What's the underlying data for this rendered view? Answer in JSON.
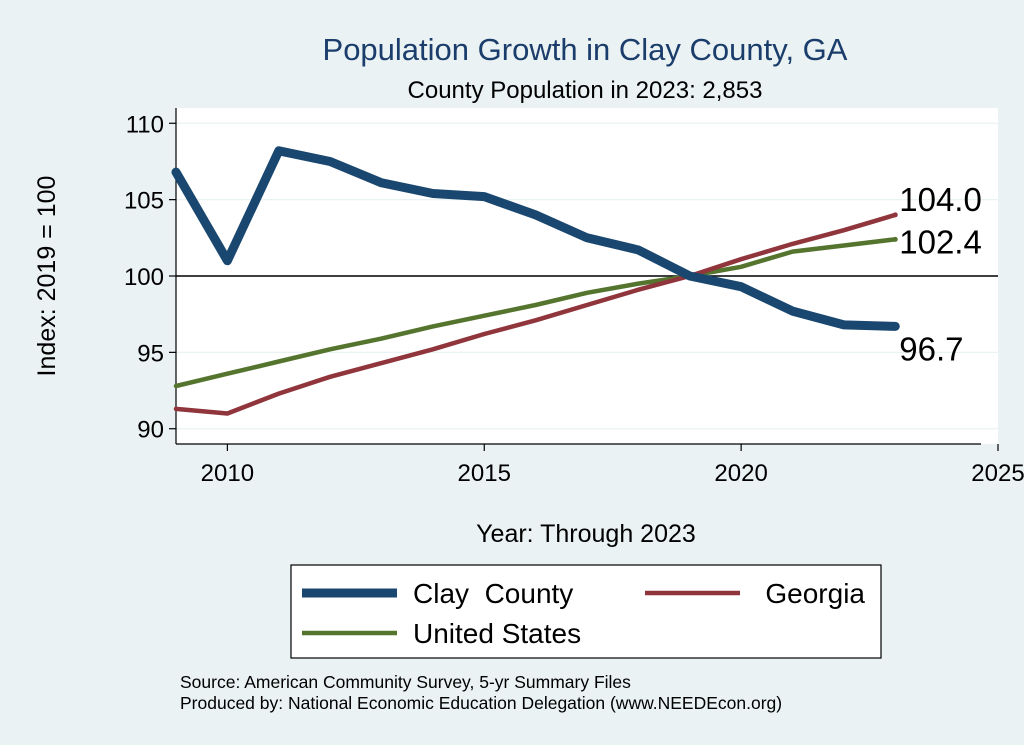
{
  "chart_data": {
    "type": "line",
    "title": "Population Growth in Clay County, GA",
    "subtitle": "County Population in 2023: 2,853",
    "xlabel": "Year: Through 2023",
    "ylabel": "Index: 2019 = 100",
    "xlim": [
      2009,
      2025
    ],
    "ylim": [
      89,
      111
    ],
    "xticks": [
      2010,
      2015,
      2020,
      2025
    ],
    "yticks": [
      90,
      95,
      100,
      105,
      110
    ],
    "reference_line": 100,
    "x": [
      2009,
      2010,
      2011,
      2012,
      2013,
      2014,
      2015,
      2016,
      2017,
      2018,
      2019,
      2020,
      2021,
      2022,
      2023
    ],
    "series": [
      {
        "name": "Clay  County",
        "color": "#1a476f",
        "values": [
          106.8,
          101.0,
          108.2,
          107.5,
          106.1,
          105.4,
          105.2,
          104.0,
          102.5,
          101.7,
          100.0,
          99.3,
          97.7,
          96.8,
          96.7
        ],
        "end_label": "96.7"
      },
      {
        "name": "Georgia",
        "color": "#90353b",
        "values": [
          91.3,
          91.0,
          92.3,
          93.4,
          94.3,
          95.2,
          96.2,
          97.1,
          98.1,
          99.1,
          100.0,
          101.1,
          102.1,
          103.0,
          104.0
        ],
        "end_label": "104.0"
      },
      {
        "name": "United States",
        "color": "#55752f",
        "values": [
          92.8,
          93.6,
          94.4,
          95.2,
          95.9,
          96.7,
          97.4,
          98.1,
          98.9,
          99.5,
          100.0,
          100.6,
          101.6,
          102.0,
          102.4
        ],
        "end_label": "102.4"
      }
    ],
    "legend_position": "bottom"
  },
  "source_lines": [
    "Source: American Community Survey, 5-yr Summary Files",
    "Produced by: National Economic Education Delegation (www.NEEDEcon.org)"
  ]
}
